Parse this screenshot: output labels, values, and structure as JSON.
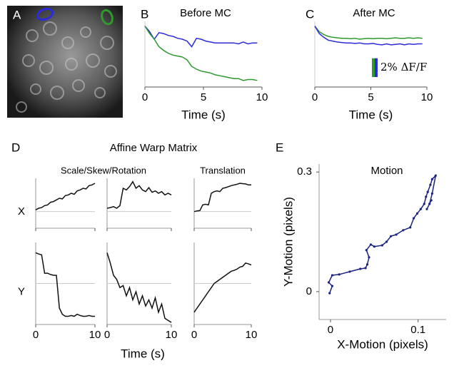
{
  "chart_data": [
    {
      "type": "image",
      "panel_label": "A"
    },
    {
      "type": "line",
      "panel_label": "B",
      "title": "Before MC",
      "x_label": "Time (s)",
      "x": [
        0,
        0.4,
        0.8,
        1.2,
        1.6,
        2,
        2.4,
        2.8,
        3.2,
        3.6,
        4,
        4.4,
        4.8,
        5.2,
        5.6,
        6,
        6.4,
        6.8,
        7.2,
        7.6,
        8,
        8.4,
        8.8,
        9.2,
        9.6
      ],
      "xlim": [
        0,
        10
      ],
      "xticks": [
        0,
        5,
        10
      ],
      "ylim": [
        -6.5,
        0.5
      ],
      "series": [
        {
          "color": "#2b2bd9",
          "values": [
            0,
            -0.6,
            -1.4,
            -0.7,
            -0.8,
            -1.0,
            -1.1,
            -1.3,
            -1.4,
            -1.6,
            -2.2,
            -1.3,
            -1.4,
            -1.6,
            -1.7,
            -1.8,
            -1.8,
            -1.8,
            -1.8,
            -1.8,
            -1.9,
            -1.7,
            -1.9,
            -1.8,
            -1.8
          ]
        },
        {
          "color": "#2e9a2e",
          "values": [
            0,
            -0.8,
            -1.4,
            -2.2,
            -2.6,
            -2.9,
            -3.1,
            -3.2,
            -3.3,
            -3.6,
            -4.3,
            -4.6,
            -4.8,
            -4.9,
            -5.0,
            -5.2,
            -5.3,
            -5.4,
            -5.5,
            -5.6,
            -5.6,
            -5.8,
            -5.7,
            -5.7,
            -5.8
          ]
        }
      ]
    },
    {
      "type": "line",
      "panel_label": "C",
      "title": "After MC",
      "x_label": "Time (s)",
      "x": [
        0,
        0.4,
        0.8,
        1.2,
        1.6,
        2,
        2.4,
        2.8,
        3.2,
        3.6,
        4,
        4.4,
        4.8,
        5.2,
        5.6,
        6,
        6.4,
        6.8,
        7.2,
        7.6,
        8,
        8.4,
        8.8,
        9.2,
        9.6
      ],
      "xlim": [
        0,
        10
      ],
      "xticks": [
        0,
        5,
        10
      ],
      "ylim": [
        -6.5,
        0.5
      ],
      "scale_bar": {
        "value": 2,
        "label": "2% ΔF/F"
      },
      "series": [
        {
          "color": "#2e9a2e",
          "values": [
            0,
            -0.6,
            -0.9,
            -1.1,
            -1.2,
            -1.25,
            -1.3,
            -1.3,
            -1.35,
            -1.3,
            -1.4,
            -1.35,
            -1.3,
            -1.35,
            -1.3,
            -1.3,
            -1.35,
            -1.3,
            -1.25,
            -1.3,
            -1.3,
            -1.25,
            -1.3,
            -1.25,
            -1.3
          ]
        },
        {
          "color": "#2b2bd9",
          "values": [
            0,
            -0.8,
            -1.2,
            -1.5,
            -1.6,
            -1.7,
            -1.75,
            -1.8,
            -1.8,
            -1.85,
            -1.8,
            -1.9,
            -1.9,
            -1.85,
            -1.95,
            -2.0,
            -1.9,
            -2.0,
            -1.95,
            -1.9,
            -2.0,
            -1.9,
            -1.95,
            -1.9,
            -1.9
          ]
        }
      ]
    },
    {
      "type": "line-grid",
      "panel_label": "D",
      "title": "Affine Warp Matrix",
      "column_titles": [
        "Scale/Skew/Rotation",
        "Translation"
      ],
      "row_labels": [
        "X",
        "Y"
      ],
      "x_label": "Time (s)",
      "color": "#111111",
      "x": [
        0,
        0.5,
        1,
        1.5,
        2,
        2.5,
        3,
        3.5,
        4,
        4.5,
        5,
        5.5,
        6,
        6.5,
        7,
        7.5,
        8,
        8.5,
        9,
        9.5,
        10
      ],
      "xlim": [
        0,
        10
      ],
      "xticks": [
        0,
        10
      ],
      "subplots": [
        {
          "ylim": [
            -0.5,
            1
          ],
          "values": [
            0.05,
            0.1,
            0.12,
            0.18,
            0.2,
            0.28,
            0.3,
            0.35,
            0.4,
            0.38,
            0.48,
            0.5,
            0.55,
            0.52,
            0.62,
            0.65,
            0.7,
            0.68,
            0.78,
            0.8,
            0.85
          ]
        },
        {
          "ylim": [
            -0.5,
            1
          ],
          "values": [
            0.1,
            0.12,
            0.15,
            0.1,
            0.18,
            0.7,
            0.65,
            0.75,
            0.9,
            0.7,
            0.78,
            0.65,
            0.6,
            0.72,
            0.58,
            0.62,
            0.55,
            0.6,
            0.5,
            0.55,
            0.5
          ]
        },
        {
          "ylim": [
            -0.5,
            1
          ],
          "values": [
            0,
            0.02,
            0.03,
            0.2,
            0.22,
            0.2,
            0.55,
            0.6,
            0.62,
            0.6,
            0.7,
            0.72,
            0.75,
            0.78,
            0.8,
            0.82,
            0.85,
            0.84,
            0.83,
            0.8,
            0.8
          ]
        },
        {
          "ylim": [
            -1,
            1
          ],
          "values": [
            0.75,
            0.72,
            0.7,
            0.25,
            0.25,
            0.22,
            0.2,
            0.2,
            -0.6,
            -0.75,
            -0.8,
            -0.8,
            -0.78,
            -0.8,
            -0.75,
            -0.78,
            -0.8,
            -0.8,
            -0.78,
            -0.8,
            -0.8
          ]
        },
        {
          "ylim": [
            -1,
            1
          ],
          "values": [
            0.75,
            0.5,
            0.2,
            0.1,
            -0.1,
            -0.05,
            -0.3,
            -0.1,
            -0.4,
            -0.2,
            -0.5,
            -0.3,
            -0.55,
            -0.4,
            -0.6,
            -0.35,
            -0.7,
            -0.5,
            -0.85,
            -0.9,
            -0.95
          ]
        },
        {
          "ylim": [
            -1,
            1
          ],
          "values": [
            -0.7,
            -0.6,
            -0.5,
            -0.4,
            -0.3,
            -0.2,
            -0.1,
            0,
            0.05,
            0.1,
            0.15,
            0.2,
            0.25,
            0.3,
            0.32,
            0.35,
            0.4,
            0.42,
            0.5,
            0.48,
            0.45
          ]
        }
      ]
    },
    {
      "type": "trajectory",
      "panel_label": "E",
      "title": "Motion",
      "x_label": "X-Motion (pixels)",
      "y_label": "Y-Motion (pixels)",
      "color": "#1a237e",
      "xlim": [
        -0.013,
        0.132
      ],
      "xticks": [
        0,
        0.1
      ],
      "ylim": [
        -0.07,
        0.32
      ],
      "yticks": [
        0,
        0.3
      ],
      "x": [
        -0.001,
        0.002,
        -0.002,
        0.002,
        0.01,
        0.022,
        0.034,
        0.04,
        0.042,
        0.044,
        0.041,
        0.046,
        0.05,
        0.059,
        0.064,
        0.069,
        0.075,
        0.083,
        0.091,
        0.095,
        0.099,
        0.103,
        0.107,
        0.109,
        0.111,
        0.114,
        0.116,
        0.12,
        0.116,
        0.113,
        0.11,
        0.115
      ],
      "y": [
        -0.004,
        0.014,
        0.023,
        0.041,
        0.043,
        0.05,
        0.057,
        0.059,
        0.068,
        0.086,
        0.104,
        0.118,
        0.113,
        0.116,
        0.125,
        0.139,
        0.143,
        0.154,
        0.161,
        0.184,
        0.196,
        0.207,
        0.22,
        0.238,
        0.25,
        0.268,
        0.282,
        0.291,
        0.246,
        0.22,
        0.207,
        0.229
      ]
    }
  ]
}
